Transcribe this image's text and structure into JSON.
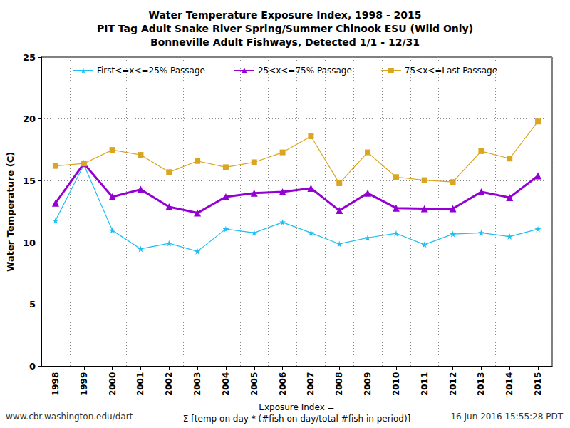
{
  "chart_data": {
    "type": "line",
    "title": [
      "Water Temperature Exposure Index, 1998 - 2015",
      "PIT Tag Adult Snake River Spring/Summer Chinook ESU (Wild Only)",
      "Bonneville Adult Fishways, Detected 1/1 - 12/31"
    ],
    "xlabel": [
      "Exposure Index =",
      "Σ [temp on day * (#fish on day/total #fish in period)]"
    ],
    "ylabel": "Water Temperature (C)",
    "annotations": [
      "www.cbr.washington.edu/dart",
      "16 Jun 2016 15:55:28 PDT"
    ],
    "categories": [
      "1998",
      "1999",
      "2000",
      "2001",
      "2002",
      "2003",
      "2004",
      "2005",
      "2006",
      "2007",
      "2008",
      "2009",
      "2010",
      "2011",
      "2012",
      "2013",
      "2014",
      "2015"
    ],
    "series": [
      {
        "name": "First<=x<=25% Passage",
        "color": "#1cbff0",
        "marker": "star",
        "line_style": "solid",
        "values": [
          11.8,
          16.3,
          11.0,
          9.5,
          9.95,
          9.3,
          11.1,
          10.8,
          11.65,
          10.8,
          9.9,
          10.4,
          10.75,
          9.85,
          10.7,
          10.8,
          10.5,
          11.1
        ]
      },
      {
        "name": "25<x<=75% Passage",
        "color": "#9400d3",
        "marker": "triangle",
        "line_style": "solid",
        "values": [
          13.2,
          16.4,
          13.7,
          14.3,
          12.9,
          12.4,
          13.7,
          14.0,
          14.1,
          14.4,
          12.6,
          14.0,
          12.8,
          12.75,
          12.75,
          14.1,
          13.65,
          15.4
        ]
      },
      {
        "name": "75<x<=Last Passage",
        "color": "#daa520",
        "marker": "square",
        "line_style": "solid",
        "values": [
          16.2,
          16.4,
          17.5,
          17.1,
          15.7,
          16.6,
          16.1,
          16.5,
          17.3,
          18.6,
          14.8,
          17.3,
          15.3,
          15.05,
          14.9,
          17.4,
          16.8,
          19.8
        ]
      }
    ],
    "ylim": [
      0,
      25
    ],
    "yticks": [
      0,
      5,
      10,
      15,
      20,
      25
    ],
    "grid": true,
    "legend": "top"
  }
}
